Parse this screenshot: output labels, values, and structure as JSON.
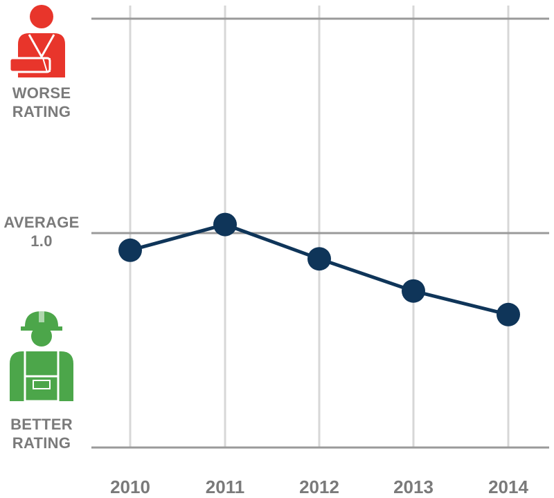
{
  "labels": {
    "worse_line1": "WORSE",
    "worse_line2": "RATING",
    "average_line1": "AVERAGE",
    "average_line2": "1.0",
    "better_line1": "BETTER",
    "better_line2": "RATING"
  },
  "icons": {
    "worse": "injured-worker-arm-sling-icon",
    "better": "construction-worker-hardhat-icon"
  },
  "colors": {
    "line": "#0f3559",
    "worse": "#e8352b",
    "better": "#4ca64a",
    "grid": "#d7d7d7",
    "text": "#7a7a7a"
  },
  "chart_data": {
    "type": "line",
    "categories": [
      "2010",
      "2011",
      "2012",
      "2013",
      "2014"
    ],
    "series": [
      {
        "values": [
          0.92,
          1.04,
          0.88,
          0.73,
          0.62
        ]
      }
    ],
    "ylim": [
      0,
      2
    ],
    "reference_line": 1.0,
    "title": "",
    "xlabel": "",
    "ylabel": ""
  }
}
